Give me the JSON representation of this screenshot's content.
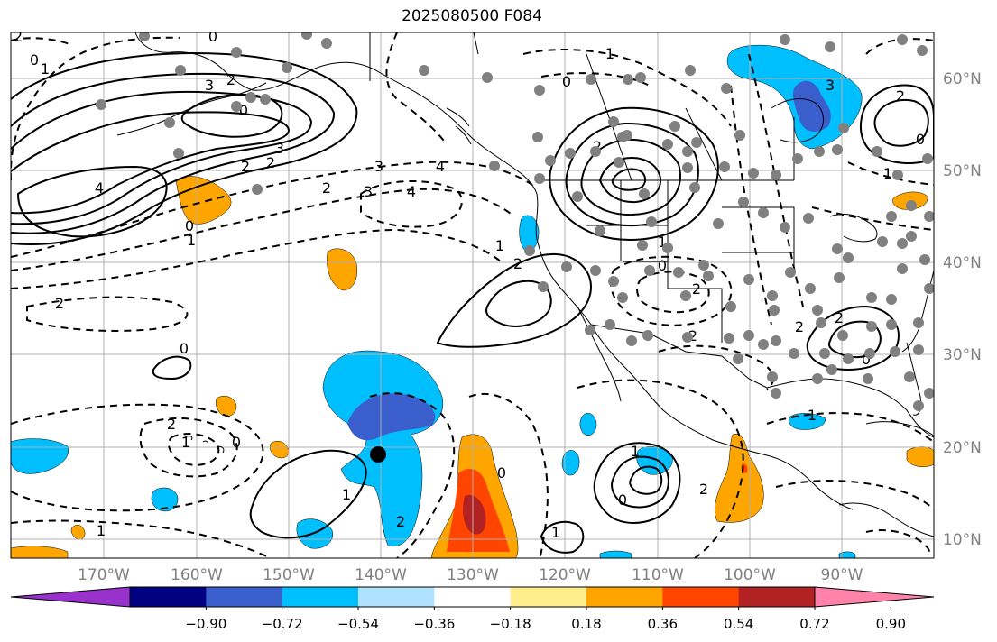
{
  "title": "2025080500 F084",
  "colors": {
    "palette": [
      "#9932CC",
      "#000080",
      "#3A5FCD",
      "#00BFFF",
      "#B0E2FF",
      "#FFFFFF",
      "#FFEC8B",
      "#FFA500",
      "#FF4500",
      "#B22222",
      "#FF82AB"
    ],
    "station_dot": "#808080",
    "marker": "#000000"
  },
  "axes": {
    "lat_ticks": [
      "60°N",
      "50°N",
      "40°N",
      "30°N",
      "20°N",
      "10°N"
    ],
    "lon_ticks": [
      "170°W",
      "160°W",
      "150°W",
      "140°W",
      "130°W",
      "120°W",
      "110°W",
      "100°W",
      "90°W"
    ]
  },
  "colorbar": {
    "tick_labels": [
      "−0.90",
      "−0.72",
      "−0.54",
      "−0.36",
      "−0.18",
      "0.18",
      "0.36",
      "0.54",
      "0.72",
      "0.90"
    ],
    "extend": "both"
  },
  "contour_labels": [
    "2",
    "0",
    "1",
    "0",
    "4",
    "3",
    "2",
    "2",
    "3",
    "4",
    "2",
    "3",
    "4",
    "0",
    "1",
    "2",
    "0",
    "2",
    "3",
    "0",
    "1",
    "2",
    "0",
    "1",
    "2",
    "1",
    "2",
    "2",
    "0",
    "2",
    "2",
    "0",
    "1",
    "2",
    "3",
    "0",
    "1",
    "2",
    "1",
    "0",
    "1",
    "2",
    "0",
    "1",
    "0",
    "1",
    "2",
    "1"
  ]
}
